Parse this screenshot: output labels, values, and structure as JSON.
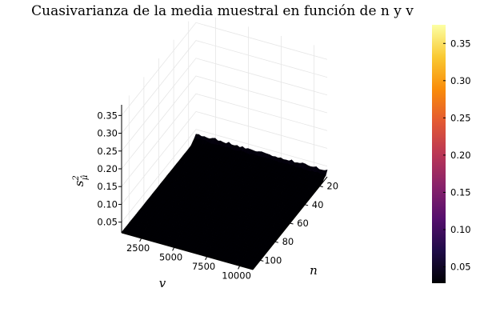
{
  "chart_data": {
    "type": "surface",
    "title": "Cuasivarianza de la media muestral en función de n y v",
    "xlabel": "v",
    "ylabel": "n",
    "zlabel_base": "s",
    "zlabel_sup": "2",
    "zlabel_sub": "μ̂",
    "x_ticks": [
      2500,
      5000,
      7500,
      10000
    ],
    "y_ticks": [
      20,
      40,
      60,
      80,
      100
    ],
    "z_ticks": [
      0.05,
      0.1,
      0.15,
      0.2,
      0.25,
      0.3,
      0.35
    ],
    "x_tick_labels": [
      "2500",
      "5000",
      "7500",
      "10000"
    ],
    "y_tick_labels": [
      "20",
      "40",
      "60",
      "80",
      "100"
    ],
    "z_tick_labels": [
      "0.05",
      "0.10",
      "0.15",
      "0.20",
      "0.25",
      "0.30",
      "0.35"
    ],
    "xlim": [
      1000,
      11000
    ],
    "ylim": [
      10,
      110
    ],
    "zlim": [
      0.02,
      0.38
    ],
    "colorbar_ticks": [
      0.05,
      0.1,
      0.15,
      0.2,
      0.25,
      0.3,
      0.35
    ],
    "colorbar_tick_labels": [
      "0.05",
      "0.10",
      "0.15",
      "0.20",
      "0.25",
      "0.30",
      "0.35"
    ],
    "colorbar_range": [
      0.028,
      0.375
    ],
    "colormap": "inferno",
    "colormap_stops": [
      "#000004",
      "#1f0c48",
      "#550f6d",
      "#88226a",
      "#ba3655",
      "#e35933",
      "#f98c0a",
      "#f9c932",
      "#fcffa4"
    ],
    "surface_model": "z ≈ 0.37 / n (roughly constant in v)",
    "grid": true,
    "legend": "none"
  }
}
